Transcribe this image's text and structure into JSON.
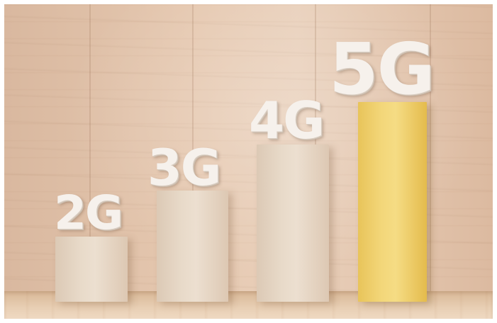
{
  "scene": {
    "labels": [
      "2G",
      "3G",
      "4G",
      "5G"
    ]
  },
  "bars": [
    {
      "label": "2G",
      "style": "box"
    },
    {
      "label": "3G",
      "style": "box"
    },
    {
      "label": "4G",
      "style": "box"
    },
    {
      "label": "5G",
      "style": "gold"
    }
  ],
  "colors": {
    "wood": "#e6c9b1",
    "box": "#e8dac9",
    "gold": "#f3d77a",
    "label": "#f6f1ec"
  }
}
